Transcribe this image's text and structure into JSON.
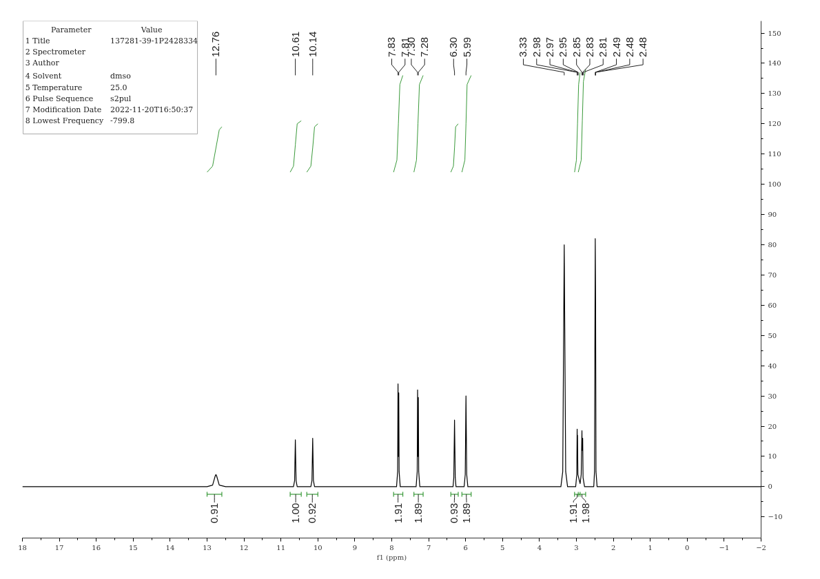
{
  "chart_data": {
    "type": "line",
    "xlabel": "f1 (ppm)",
    "xlim": [
      18,
      -2
    ],
    "ylim": [
      -17,
      154
    ],
    "xticks": [
      18,
      17,
      16,
      15,
      14,
      13,
      12,
      11,
      10,
      9,
      8,
      7,
      6,
      5,
      4,
      3,
      2,
      1,
      0,
      -1,
      -2
    ],
    "yticks": [
      -10,
      0,
      10,
      20,
      30,
      40,
      50,
      60,
      70,
      80,
      90,
      100,
      110,
      120,
      130,
      140,
      150
    ],
    "series": [
      {
        "color": "#000000",
        "x": [
          18,
          13.0,
          12.85,
          12.78,
          12.76,
          12.74,
          12.67,
          12.5,
          10.66,
          10.63,
          10.61,
          10.59,
          10.56,
          10.19,
          10.16,
          10.14,
          10.12,
          10.09,
          7.87,
          7.84,
          7.83,
          7.82,
          7.81,
          7.8,
          7.77,
          7.34,
          7.31,
          7.3,
          7.29,
          7.28,
          7.27,
          7.24,
          6.34,
          6.32,
          6.3,
          6.28,
          6.26,
          6.04,
          6.01,
          5.99,
          5.97,
          5.94,
          3.42,
          3.37,
          3.33,
          3.29,
          3.24,
          3.02,
          2.99,
          2.98,
          2.975,
          2.97,
          2.96,
          2.9,
          2.87,
          2.85,
          2.845,
          2.83,
          2.82,
          2.78,
          2.53,
          2.51,
          2.49,
          2.48,
          2.47,
          2.44,
          -2
        ],
        "values": [
          0,
          0,
          0.5,
          3.5,
          4,
          3.5,
          0.5,
          0,
          0,
          2,
          15.5,
          2,
          0,
          0,
          2,
          16,
          2,
          0,
          0,
          5,
          34,
          10,
          31,
          5,
          0,
          0,
          5,
          32,
          10,
          29.5,
          5,
          0,
          0,
          3,
          22,
          3,
          0,
          0,
          4,
          30,
          4,
          0,
          0,
          5,
          80,
          5,
          0,
          0,
          4,
          19,
          12,
          17,
          4,
          1,
          4,
          18.5,
          12,
          16,
          3,
          0,
          0,
          5,
          82,
          60,
          5,
          0,
          0
        ]
      },
      {
        "color": "#3a9a3a",
        "x": [
          13.0,
          12.85,
          12.76,
          12.67,
          12.6
        ],
        "values": [
          104,
          106,
          112,
          118,
          119
        ]
      },
      {
        "color": "#3a9a3a",
        "x": [
          10.75,
          10.66,
          10.61,
          10.56,
          10.45
        ],
        "values": [
          104,
          106,
          113,
          120,
          121
        ]
      },
      {
        "color": "#3a9a3a",
        "x": [
          10.3,
          10.19,
          10.14,
          10.09,
          10.0
        ],
        "values": [
          104,
          106,
          112,
          119,
          120
        ]
      },
      {
        "color": "#3a9a3a",
        "x": [
          7.95,
          7.86,
          7.82,
          7.78,
          7.7
        ],
        "values": [
          104,
          108,
          120,
          133,
          136
        ]
      },
      {
        "color": "#3a9a3a",
        "x": [
          7.4,
          7.33,
          7.29,
          7.25,
          7.15
        ],
        "values": [
          104,
          108,
          120,
          133,
          136
        ]
      },
      {
        "color": "#3a9a3a",
        "x": [
          6.4,
          6.33,
          6.3,
          6.27,
          6.2
        ],
        "values": [
          104,
          106,
          112,
          119,
          120
        ]
      },
      {
        "color": "#3a9a3a",
        "x": [
          6.1,
          6.02,
          5.99,
          5.96,
          5.85
        ],
        "values": [
          104,
          108,
          120,
          133,
          136
        ]
      },
      {
        "color": "#3a9a3a",
        "x": [
          3.05,
          3.0,
          2.97,
          2.94,
          2.9
        ],
        "values": [
          104,
          108,
          120,
          133,
          137
        ]
      },
      {
        "color": "#3a9a3a",
        "x": [
          2.95,
          2.87,
          2.84,
          2.81,
          2.75
        ],
        "values": [
          104,
          108,
          121,
          134,
          138
        ]
      }
    ],
    "annotations": [
      "Parameter\tValue",
      "1 Title\t137281-39-1P2428334",
      "2 Spectrometer",
      "3 Author",
      "4 Solvent\tdmso",
      "5 Temperature\t25.0",
      "6 Pulse Sequence\ts2pul",
      "7 Modification Date\t2022-11-20T16:50:37",
      "8 Lowest Frequency\t-799.8",
      {
        "text": "12.76",
        "x": 12.76
      },
      {
        "text": "10.61",
        "x": 10.61
      },
      {
        "text": "10.14",
        "x": 10.14
      },
      {
        "text": "7.83",
        "x": 7.83
      },
      {
        "text": "7.81",
        "x": 7.81
      },
      {
        "text": "7.30",
        "x": 7.3
      },
      {
        "text": "7.28",
        "x": 7.28
      },
      {
        "text": "6.30",
        "x": 6.3
      },
      {
        "text": "5.99",
        "x": 5.99
      },
      {
        "text": "3.33",
        "x": 3.33
      },
      {
        "text": "2.98",
        "x": 2.98
      },
      {
        "text": "2.97",
        "x": 2.97
      },
      {
        "text": "2.95",
        "x": 2.95
      },
      {
        "text": "2.85",
        "x": 2.85
      },
      {
        "text": "2.83",
        "x": 2.83
      },
      {
        "text": "2.81",
        "x": 2.81
      },
      {
        "text": "2.49",
        "x": 2.49
      },
      {
        "text": "2.48",
        "x": 2.48
      },
      {
        "text": "2.48",
        "x": 2.48
      },
      {
        "text": "0.91",
        "x": 12.8
      },
      {
        "text": "1.00",
        "x": 10.6
      },
      {
        "text": "0.92",
        "x": 10.15
      },
      {
        "text": "1.91",
        "x": 7.83
      },
      {
        "text": "1.89",
        "x": 7.28
      },
      {
        "text": "0.93",
        "x": 6.3
      },
      {
        "text": "1.89",
        "x": 5.98
      },
      {
        "text": "1.91",
        "x": 2.98
      },
      {
        "text": "1.98",
        "x": 2.85
      }
    ]
  }
}
